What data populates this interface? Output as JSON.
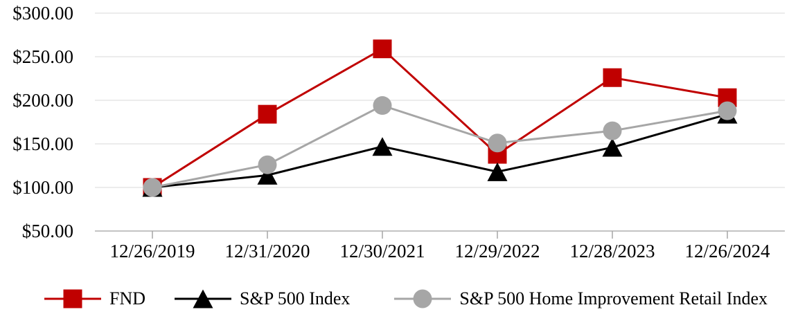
{
  "chart_data": {
    "type": "line",
    "x_labels": [
      "12/26/2019",
      "12/31/2020",
      "12/30/2021",
      "12/29/2022",
      "12/28/2023",
      "12/26/2024"
    ],
    "y_ticks": [
      300,
      250,
      200,
      150,
      100,
      50
    ],
    "y_tick_labels": [
      "$300.00",
      "$250.00",
      "$200.00",
      "$150.00",
      "$100.00",
      "$50.00"
    ],
    "ylim": [
      50,
      300
    ],
    "grid": true,
    "legend_position": "bottom",
    "series": [
      {
        "name": "FND",
        "marker": "square",
        "color": "#C00000",
        "values": [
          100,
          184,
          259,
          138,
          226,
          203
        ]
      },
      {
        "name": "S&P 500 Index",
        "marker": "triangle",
        "color": "#000000",
        "values": [
          100,
          114,
          147,
          118,
          146,
          184
        ]
      },
      {
        "name": "S&P 500 Home Improvement Retail Index",
        "marker": "circle",
        "color": "#A6A6A6",
        "values": [
          100,
          126,
          194,
          151,
          165,
          188
        ]
      }
    ]
  }
}
